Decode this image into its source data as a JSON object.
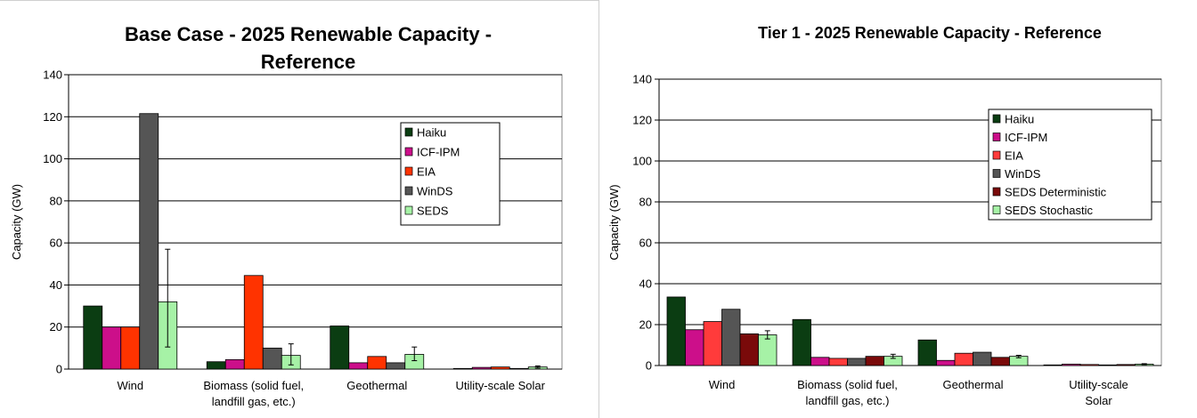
{
  "chart_data": [
    {
      "type": "bar",
      "title_lines": [
        "Base Case - 2025 Renewable Capacity -",
        "Reference"
      ],
      "xlabel": "",
      "ylabel": "Capacity (GW)",
      "ylim": [
        0,
        140
      ],
      "yticks": [
        0,
        20,
        40,
        60,
        80,
        100,
        120,
        140
      ],
      "grid": true,
      "legend_position": "right",
      "categories": [
        [
          "Wind"
        ],
        [
          "Biomass (solid fuel,",
          "landfill gas, etc.)"
        ],
        [
          "Geothermal"
        ],
        [
          "Utility-scale Solar"
        ]
      ],
      "series": [
        {
          "name": "Haiku",
          "color": "#0b3d12",
          "values": [
            30,
            3.5,
            20.5,
            0.3
          ]
        },
        {
          "name": "ICF-IPM",
          "color": "#cc0f8a",
          "values": [
            20,
            4.5,
            3,
            0.8
          ]
        },
        {
          "name": "EIA",
          "color": "#ff3300",
          "values": [
            20,
            44.5,
            6,
            1
          ]
        },
        {
          "name": "WinDS",
          "color": "#555555",
          "values": [
            121.5,
            10,
            3,
            0.3
          ]
        },
        {
          "name": "SEDS",
          "color": "#a6f2a6",
          "values": [
            32,
            6.5,
            7,
            1
          ]
        }
      ],
      "error_bars": {
        "series": "SEDS",
        "low": [
          10.5,
          2,
          4,
          0.5
        ],
        "high": [
          57,
          12,
          10.5,
          1.5
        ]
      }
    },
    {
      "type": "bar",
      "title_lines": [
        "Tier 1 - 2025 Renewable Capacity - Reference"
      ],
      "xlabel": "",
      "ylabel": "Capacity (GW)",
      "ylim": [
        0,
        140
      ],
      "yticks": [
        0,
        20,
        40,
        60,
        80,
        100,
        120,
        140
      ],
      "grid": true,
      "legend_position": "right",
      "categories": [
        [
          "Wind"
        ],
        [
          "Biomass (solid fuel,",
          "landfill gas, etc.)"
        ],
        [
          "Geothermal"
        ],
        [
          "Utility-scale",
          "Solar"
        ]
      ],
      "series": [
        {
          "name": "Haiku",
          "color": "#0b3d12",
          "values": [
            33.5,
            22.5,
            12.5,
            0.3
          ]
        },
        {
          "name": "ICF-IPM",
          "color": "#cc0f8a",
          "values": [
            17.5,
            4,
            2.5,
            0.7
          ]
        },
        {
          "name": "EIA",
          "color": "#ff3b3b",
          "values": [
            21.5,
            3.5,
            6,
            0.5
          ]
        },
        {
          "name": "WinDS",
          "color": "#555555",
          "values": [
            27.5,
            3.5,
            6.5,
            0.3
          ]
        },
        {
          "name": "SEDS Deterministic",
          "color": "#7a0a0a",
          "values": [
            15.5,
            4.5,
            4,
            0.5
          ]
        },
        {
          "name": "SEDS Stochastic",
          "color": "#a6f2a6",
          "values": [
            15,
            4.5,
            4.5,
            0.7
          ]
        }
      ],
      "error_bars": {
        "series": "SEDS Stochastic",
        "low": [
          13,
          3.5,
          3.8,
          0.5
        ],
        "high": [
          17,
          5.5,
          5,
          0.9
        ]
      }
    }
  ]
}
